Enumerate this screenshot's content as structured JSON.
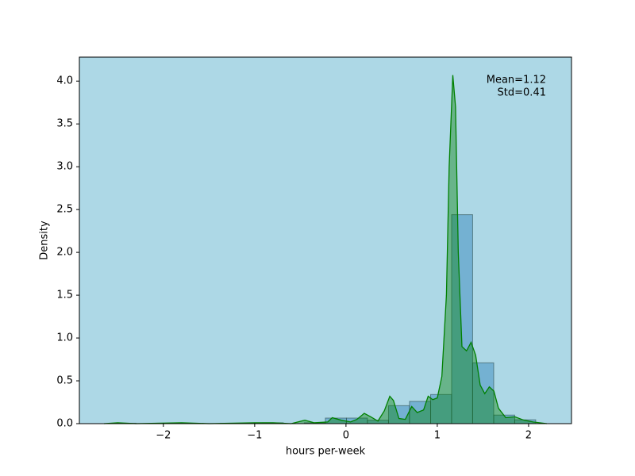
{
  "chart_data": {
    "type": "histogram",
    "xlabel": "hours per-week",
    "ylabel": "Density",
    "annotations": [
      "Mean=1.12",
      "Std=0.41"
    ],
    "background": "#add8e6",
    "bins": [
      -2.53,
      -2.3,
      -2.069,
      -1.839,
      -1.608,
      -1.378,
      -1.148,
      -0.917,
      -0.687,
      -0.456,
      -0.226,
      0.005,
      0.235,
      0.466,
      0.696,
      0.927,
      1.157,
      1.387,
      1.618,
      1.848,
      2.078
    ],
    "values": [
      0.005,
      0,
      0.005,
      0,
      0,
      0.005,
      0,
      0.01,
      0,
      0.01,
      0.065,
      0.065,
      0.04,
      0.21,
      0.26,
      0.34,
      2.44,
      0.71,
      0.1,
      0.045
    ],
    "color": "#1f77b4",
    "kde": {
      "color": "#008000",
      "x": [
        -2.65,
        -2.5,
        -2.3,
        -1.8,
        -1.5,
        -1.0,
        -0.8,
        -0.6,
        -0.45,
        -0.35,
        -0.2,
        -0.15,
        -0.05,
        0.0,
        0.05,
        0.12,
        0.2,
        0.27,
        0.35,
        0.42,
        0.48,
        0.52,
        0.58,
        0.65,
        0.72,
        0.78,
        0.85,
        0.9,
        0.95,
        1.0,
        1.05,
        1.1,
        1.13,
        1.17,
        1.2,
        1.23,
        1.27,
        1.32,
        1.37,
        1.42,
        1.47,
        1.52,
        1.57,
        1.62,
        1.67,
        1.75,
        1.85,
        1.95,
        2.05,
        2.2
      ],
      "values": [
        0,
        0.01,
        0,
        0.01,
        0,
        0.01,
        0.01,
        0,
        0.04,
        0.01,
        0.02,
        0.07,
        0.04,
        0.03,
        0.02,
        0.05,
        0.12,
        0.08,
        0.03,
        0.15,
        0.32,
        0.27,
        0.06,
        0.05,
        0.2,
        0.13,
        0.16,
        0.32,
        0.28,
        0.3,
        0.55,
        1.5,
        3.0,
        4.07,
        3.7,
        2.0,
        0.9,
        0.85,
        0.95,
        0.8,
        0.45,
        0.35,
        0.43,
        0.38,
        0.18,
        0.07,
        0.08,
        0.04,
        0.02,
        0
      ]
    },
    "xlim": [
      -2.92,
      2.47
    ],
    "ylim": [
      0,
      4.28
    ],
    "xticks": [
      {
        "value": -2,
        "label": "−2"
      },
      {
        "value": -1,
        "label": "−1"
      },
      0,
      1,
      2
    ],
    "yticks": [
      {
        "value": 0,
        "label": "0.0"
      },
      {
        "value": 0.5,
        "label": "0.5"
      },
      {
        "value": 1,
        "label": "1.0"
      },
      {
        "value": 1.5,
        "label": "1.5"
      },
      {
        "value": 2,
        "label": "2.0"
      },
      {
        "value": 2.5,
        "label": "2.5"
      },
      {
        "value": 3,
        "label": "3.0"
      },
      {
        "value": 3.5,
        "label": "3.5"
      },
      {
        "value": 4,
        "label": "4.0"
      }
    ]
  }
}
